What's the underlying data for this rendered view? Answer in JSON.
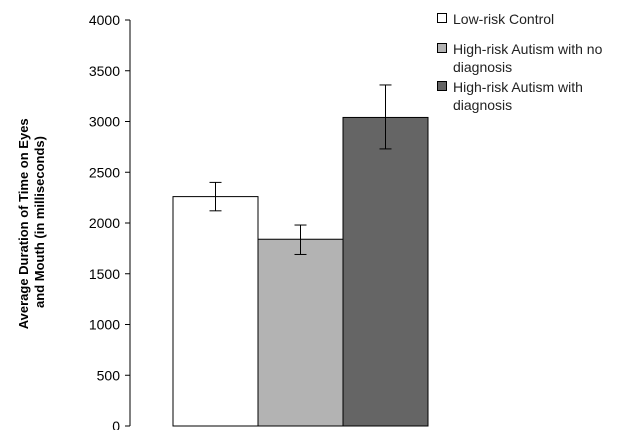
{
  "chart_data": {
    "type": "bar",
    "title": "",
    "xlabel": "",
    "ylabel": [
      "Average Duration of Time on Eyes",
      "and Mouth (in milliseconds)"
    ],
    "ylim": [
      0,
      4000
    ],
    "yticks": [
      0,
      500,
      1000,
      1500,
      2000,
      2500,
      3000,
      3500,
      4000
    ],
    "grid": false,
    "legend_position": "top-right",
    "series": [
      {
        "name": "Low-risk Control",
        "value": 2260,
        "error_low": 2120,
        "error_high": 2400,
        "color": "#ffffff"
      },
      {
        "name": "High-risk Autism with no diagnosis",
        "value": 1840,
        "error_low": 1690,
        "error_high": 1980,
        "color": "#b3b3b3"
      },
      {
        "name": "High-risk Autism with diagnosis",
        "value": 3040,
        "error_low": 2730,
        "error_high": 3360,
        "color": "#656565"
      }
    ]
  }
}
